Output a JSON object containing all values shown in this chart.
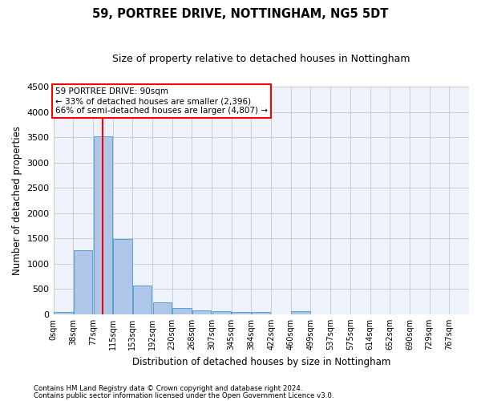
{
  "title": "59, PORTREE DRIVE, NOTTINGHAM, NG5 5DT",
  "subtitle": "Size of property relative to detached houses in Nottingham",
  "xlabel": "Distribution of detached houses by size in Nottingham",
  "ylabel": "Number of detached properties",
  "bar_color": "#aec6e8",
  "bar_edge_color": "#5a9fd4",
  "vline_color": "red",
  "vline_x": 2,
  "categories": [
    "0sqm",
    "38sqm",
    "77sqm",
    "115sqm",
    "153sqm",
    "192sqm",
    "230sqm",
    "268sqm",
    "307sqm",
    "345sqm",
    "384sqm",
    "422sqm",
    "460sqm",
    "499sqm",
    "537sqm",
    "575sqm",
    "614sqm",
    "652sqm",
    "690sqm",
    "729sqm",
    "767sqm"
  ],
  "values": [
    40,
    1270,
    3510,
    1480,
    575,
    240,
    120,
    80,
    55,
    45,
    45,
    0,
    55,
    0,
    0,
    0,
    0,
    0,
    0,
    0,
    0
  ],
  "ylim": [
    0,
    4500
  ],
  "yticks": [
    0,
    500,
    1000,
    1500,
    2000,
    2500,
    3000,
    3500,
    4000,
    4500
  ],
  "annotation_box_text": "59 PORTREE DRIVE: 90sqm\n← 33% of detached houses are smaller (2,396)\n66% of semi-detached houses are larger (4,807) →",
  "footnote1": "Contains HM Land Registry data © Crown copyright and database right 2024.",
  "footnote2": "Contains public sector information licensed under the Open Government Licence v3.0.",
  "bg_color": "#eef2fb",
  "grid_color": "#cccccc"
}
